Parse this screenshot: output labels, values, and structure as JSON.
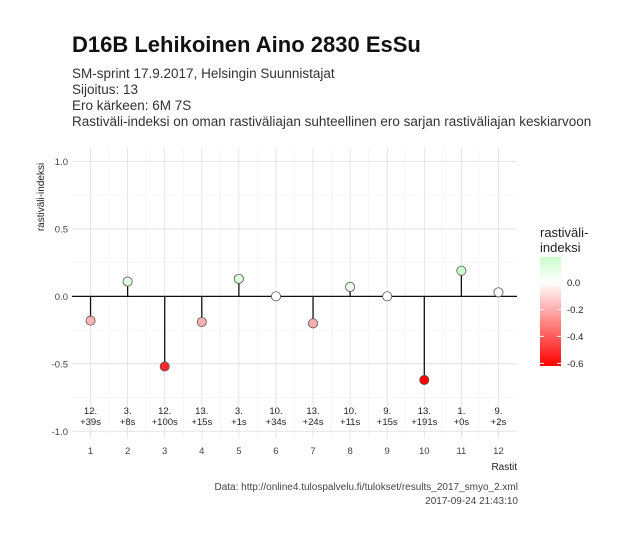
{
  "chart_data": {
    "type": "scatter",
    "title": "D16B Lehikoinen Aino 2830 EsSu",
    "subtitle_lines": [
      "SM-sprint 17.9.2017, Helsingin Suunnistajat",
      "Sijoitus: 13",
      "Ero kärkeen: 6M 7S",
      "Rastiväli-indeksi on oman rastiväliajan suhteellinen ero sarjan rastiväliajan keskiarvoon"
    ],
    "xlabel": "Rastit",
    "ylabel": "rastiväli-indeksi",
    "x": [
      1,
      2,
      3,
      4,
      5,
      6,
      7,
      8,
      9,
      10,
      11,
      12
    ],
    "y": [
      -0.18,
      0.11,
      -0.52,
      -0.19,
      0.13,
      0.0,
      -0.2,
      0.07,
      0.0,
      -0.62,
      0.19,
      0.03
    ],
    "point_labels": [
      [
        "12.",
        "+39s"
      ],
      [
        "3.",
        "+8s"
      ],
      [
        "12.",
        "+100s"
      ],
      [
        "13.",
        "+15s"
      ],
      [
        "3.",
        "+1s"
      ],
      [
        "10.",
        "+34s"
      ],
      [
        "13.",
        "+24s"
      ],
      [
        "10.",
        "+11s"
      ],
      [
        "9.",
        "+15s"
      ],
      [
        "13.",
        "+191s"
      ],
      [
        "1.",
        "+0s"
      ],
      [
        "9.",
        "+2s"
      ]
    ],
    "ylim": [
      -1.05,
      1.1
    ],
    "xlim": [
      0.5,
      12.5
    ],
    "yticks": [
      -1.0,
      -0.5,
      0.0,
      0.5,
      1.0
    ],
    "ytick_labels": [
      "-1.0",
      "-0.5",
      "0.0",
      "0.5",
      "1.0"
    ],
    "xtick_labels": [
      "1",
      "2",
      "3",
      "4",
      "5",
      "6",
      "7",
      "8",
      "9",
      "10",
      "11",
      "12"
    ],
    "grid": true,
    "legend": {
      "title_lines": [
        "rastiväli-",
        "indeksi"
      ],
      "placement": "right",
      "breaks": [
        0.0,
        -0.2,
        -0.4,
        -0.6
      ],
      "break_labels": [
        "0.0",
        "-0.2",
        "-0.4",
        "-0.6"
      ],
      "range": [
        -0.62,
        0.19
      ]
    },
    "colors": {
      "low": "#ff0000",
      "mid": "#ffffff",
      "high": "#ccffcc"
    },
    "caption_lines": [
      "Data: http://online4.tulospalvelu.fi/tulokset/results_2017_smyo_2.xml",
      "2017-09-24 21:43:10"
    ]
  }
}
